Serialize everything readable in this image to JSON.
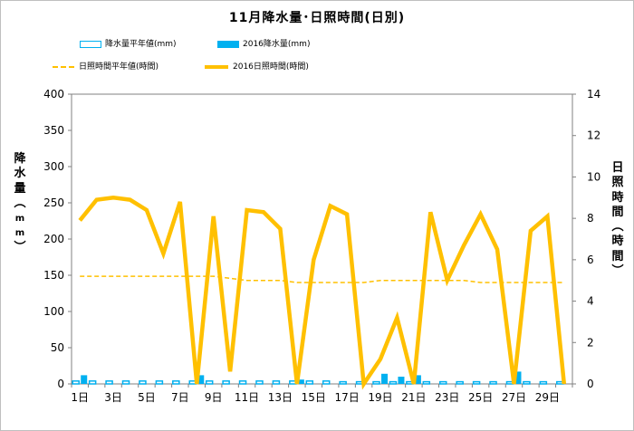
{
  "chart_data": {
    "type": "bar+line",
    "title": "11月降水量･日照時間(日別)",
    "ylabel_left": "降水量（mm）",
    "ylabel_right": "日照時間(時間)",
    "ylim_left": [
      0,
      400
    ],
    "ylim_right": [
      0,
      14
    ],
    "y_ticks_left": [
      "0",
      "50",
      "100",
      "150",
      "200",
      "250",
      "300",
      "350",
      "400"
    ],
    "y_ticks_right": [
      "0",
      "2",
      "4",
      "6",
      "8",
      "10",
      "12",
      "14"
    ],
    "x_tick_labels": [
      "1日",
      "3日",
      "5日",
      "7日",
      "9日",
      "11日",
      "13日",
      "15日",
      "17日",
      "19日",
      "21日",
      "23日",
      "25日",
      "27日",
      "29日"
    ],
    "categories": [
      1,
      2,
      3,
      4,
      5,
      6,
      7,
      8,
      9,
      10,
      11,
      12,
      13,
      14,
      15,
      16,
      17,
      18,
      19,
      20,
      21,
      22,
      23,
      24,
      25,
      26,
      27,
      28,
      29,
      30
    ],
    "legend_position": "top",
    "grid": false,
    "series": [
      {
        "name": "降水量平年値(mm)",
        "kind": "bar-outline",
        "axis": "left",
        "color": "#00b0f0",
        "values": [
          4,
          4,
          4,
          4,
          4,
          4,
          4,
          4,
          4,
          4,
          4,
          4,
          4,
          4,
          4,
          4,
          3,
          3,
          3,
          3,
          3,
          3,
          3,
          3,
          3,
          3,
          3,
          3,
          3,
          3
        ]
      },
      {
        "name": "2016降水量(mm)",
        "kind": "bar",
        "axis": "left",
        "color": "#00b0f0",
        "values": [
          12,
          0,
          0,
          0,
          0,
          0,
          0,
          12,
          0,
          0,
          0,
          0,
          0,
          6,
          0,
          0,
          0,
          0,
          14,
          10,
          12,
          0,
          0,
          0,
          0,
          0,
          17,
          0,
          0,
          0
        ]
      },
      {
        "name": "日照時間平年値(時間)",
        "kind": "line-dashed",
        "axis": "right",
        "color": "#ffc000",
        "values": [
          5.2,
          5.2,
          5.2,
          5.2,
          5.2,
          5.2,
          5.2,
          5.2,
          5.2,
          5.1,
          5.0,
          5.0,
          5.0,
          4.9,
          4.9,
          4.9,
          4.9,
          4.9,
          5.0,
          5.0,
          5.0,
          5.0,
          5.0,
          5.0,
          4.9,
          4.9,
          4.9,
          4.9,
          4.9,
          4.9
        ]
      },
      {
        "name": "2016日照時間(時間)",
        "kind": "line",
        "axis": "right",
        "color": "#ffc000",
        "values": [
          7.9,
          8.9,
          9.0,
          8.9,
          8.4,
          6.3,
          8.8,
          0.0,
          8.1,
          0.6,
          8.4,
          8.3,
          7.5,
          0.0,
          6.0,
          8.6,
          8.2,
          0.0,
          1.2,
          3.2,
          0.0,
          8.3,
          5.0,
          6.7,
          8.2,
          6.5,
          0.0,
          7.4,
          8.1,
          0.0
        ]
      }
    ]
  }
}
